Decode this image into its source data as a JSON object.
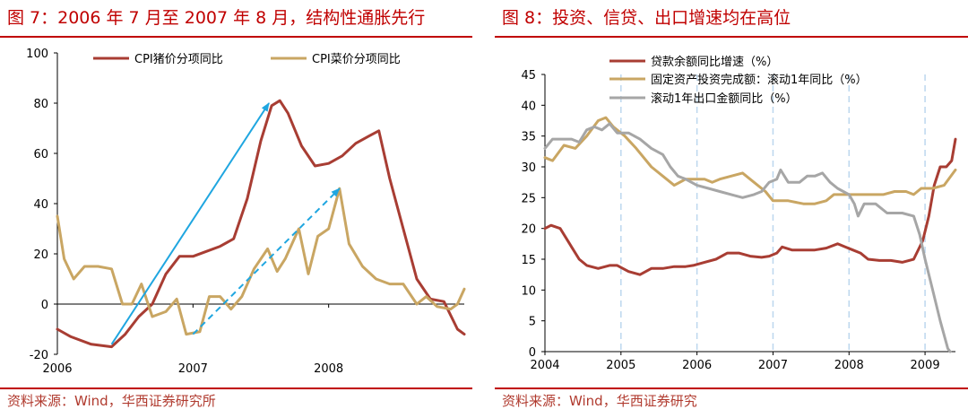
{
  "colors": {
    "title_red": "#c00000",
    "pork": "#a83d33",
    "veg": "#c9a663",
    "export": "#a6a6a6",
    "arrow": "#1fa6e0",
    "grid_blue": "#bcd7ee"
  },
  "left_panel": {
    "title": "图 7：2006 年 7 月至 2007 年 8 月，结构性通胀先行",
    "source": "资料来源：Wind，华西证券研究所"
  },
  "right_panel": {
    "title": "图 8：投资、信贷、出口增速均在高位",
    "source": "资料来源：Wind，华西证券研究"
  },
  "chart_data": [
    {
      "type": "line",
      "x_ticks": [
        "2006",
        "2007",
        "2008"
      ],
      "x_range": [
        2006.0,
        2009.0
      ],
      "ylim": [
        -20,
        100
      ],
      "y_ticks": [
        "-20",
        "0",
        "20",
        "40",
        "60",
        "80",
        "100"
      ],
      "legend_position": "top",
      "series": [
        {
          "name": "CPI猪价分项同比",
          "color": "#a83d33",
          "points": [
            [
              2006.0,
              -10
            ],
            [
              2006.1,
              -13
            ],
            [
              2006.25,
              -16
            ],
            [
              2006.4,
              -17
            ],
            [
              2006.5,
              -12
            ],
            [
              2006.6,
              -5
            ],
            [
              2006.7,
              0
            ],
            [
              2006.8,
              12
            ],
            [
              2006.9,
              19
            ],
            [
              2007.0,
              19
            ],
            [
              2007.1,
              21
            ],
            [
              2007.2,
              23
            ],
            [
              2007.3,
              26
            ],
            [
              2007.4,
              42
            ],
            [
              2007.5,
              65
            ],
            [
              2007.58,
              79
            ],
            [
              2007.64,
              81
            ],
            [
              2007.7,
              76
            ],
            [
              2007.8,
              63
            ],
            [
              2007.9,
              55
            ],
            [
              2008.0,
              56
            ],
            [
              2008.1,
              59
            ],
            [
              2008.2,
              64
            ],
            [
              2008.3,
              67
            ],
            [
              2008.37,
              69
            ],
            [
              2008.45,
              50
            ],
            [
              2008.55,
              30
            ],
            [
              2008.65,
              10
            ],
            [
              2008.75,
              2
            ],
            [
              2008.85,
              1
            ],
            [
              2008.95,
              -10
            ],
            [
              2009.0,
              -12
            ]
          ]
        },
        {
          "name": "CPI菜价分项同比",
          "color": "#c9a663",
          "points": [
            [
              2006.0,
              35
            ],
            [
              2006.05,
              18
            ],
            [
              2006.12,
              10
            ],
            [
              2006.2,
              15
            ],
            [
              2006.3,
              15
            ],
            [
              2006.4,
              14
            ],
            [
              2006.48,
              0
            ],
            [
              2006.55,
              0
            ],
            [
              2006.62,
              8
            ],
            [
              2006.7,
              -5
            ],
            [
              2006.8,
              -3
            ],
            [
              2006.88,
              2
            ],
            [
              2006.95,
              -12
            ],
            [
              2007.05,
              -11
            ],
            [
              2007.12,
              3
            ],
            [
              2007.2,
              3
            ],
            [
              2007.28,
              -2
            ],
            [
              2007.36,
              3
            ],
            [
              2007.45,
              14
            ],
            [
              2007.55,
              22
            ],
            [
              2007.62,
              13
            ],
            [
              2007.68,
              18
            ],
            [
              2007.78,
              30
            ],
            [
              2007.85,
              12
            ],
            [
              2007.92,
              27
            ],
            [
              2008.0,
              30
            ],
            [
              2008.08,
              46
            ],
            [
              2008.15,
              24
            ],
            [
              2008.25,
              15
            ],
            [
              2008.35,
              10
            ],
            [
              2008.45,
              8
            ],
            [
              2008.55,
              8
            ],
            [
              2008.65,
              0
            ],
            [
              2008.72,
              3
            ],
            [
              2008.8,
              -1
            ],
            [
              2008.9,
              -2
            ],
            [
              2008.95,
              0
            ],
            [
              2009.0,
              6
            ]
          ]
        }
      ],
      "annotations": [
        {
          "type": "arrow",
          "style": "solid",
          "from": [
            2006.4,
            -16
          ],
          "to": [
            2007.56,
            80
          ]
        },
        {
          "type": "arrow",
          "style": "dashed",
          "from": [
            2007.0,
            -12
          ],
          "to": [
            2008.08,
            46
          ]
        }
      ]
    },
    {
      "type": "line",
      "x_ticks": [
        "2004",
        "2005",
        "2006",
        "2007",
        "2008",
        "2009"
      ],
      "x_range": [
        2004.0,
        2009.4
      ],
      "ylim": [
        0,
        45
      ],
      "y_ticks": [
        "0",
        "5",
        "10",
        "15",
        "20",
        "25",
        "30",
        "35",
        "40",
        "45"
      ],
      "legend_position": "top",
      "vertical_dashed_grid_at": [
        2005,
        2006,
        2007,
        2008,
        2009
      ],
      "series": [
        {
          "name": "贷款余额同比增速（%）",
          "color": "#a83d33",
          "points": [
            [
              2004.0,
              20
            ],
            [
              2004.08,
              20.5
            ],
            [
              2004.2,
              20
            ],
            [
              2004.35,
              17
            ],
            [
              2004.45,
              15
            ],
            [
              2004.55,
              14
            ],
            [
              2004.7,
              13.5
            ],
            [
              2004.85,
              14
            ],
            [
              2004.95,
              14
            ],
            [
              2005.1,
              13
            ],
            [
              2005.25,
              12.5
            ],
            [
              2005.4,
              13.5
            ],
            [
              2005.55,
              13.5
            ],
            [
              2005.7,
              13.8
            ],
            [
              2005.85,
              13.8
            ],
            [
              2005.95,
              14
            ],
            [
              2006.1,
              14.5
            ],
            [
              2006.25,
              15
            ],
            [
              2006.4,
              16
            ],
            [
              2006.55,
              16
            ],
            [
              2006.7,
              15.5
            ],
            [
              2006.85,
              15.3
            ],
            [
              2006.95,
              15.5
            ],
            [
              2007.05,
              16
            ],
            [
              2007.12,
              17
            ],
            [
              2007.25,
              16.5
            ],
            [
              2007.4,
              16.5
            ],
            [
              2007.55,
              16.5
            ],
            [
              2007.7,
              16.8
            ],
            [
              2007.85,
              17.5
            ],
            [
              2007.95,
              17
            ],
            [
              2008.05,
              16.5
            ],
            [
              2008.15,
              16
            ],
            [
              2008.25,
              15
            ],
            [
              2008.4,
              14.8
            ],
            [
              2008.55,
              14.8
            ],
            [
              2008.7,
              14.5
            ],
            [
              2008.85,
              15
            ],
            [
              2008.97,
              18
            ],
            [
              2009.05,
              22
            ],
            [
              2009.12,
              27
            ],
            [
              2009.2,
              30
            ],
            [
              2009.28,
              30
            ],
            [
              2009.35,
              31
            ],
            [
              2009.4,
              34.5
            ]
          ]
        },
        {
          "name": "固定资产投资完成额：滚动1年同比（%）",
          "color": "#c9a663",
          "points": [
            [
              2004.0,
              31.5
            ],
            [
              2004.1,
              31
            ],
            [
              2004.25,
              33.5
            ],
            [
              2004.4,
              33
            ],
            [
              2004.55,
              35
            ],
            [
              2004.7,
              37.5
            ],
            [
              2004.8,
              38
            ],
            [
              2004.9,
              36.5
            ],
            [
              2005.05,
              35
            ],
            [
              2005.2,
              33
            ],
            [
              2005.4,
              30
            ],
            [
              2005.55,
              28.5
            ],
            [
              2005.7,
              27
            ],
            [
              2005.85,
              28
            ],
            [
              2006.0,
              28
            ],
            [
              2006.1,
              28
            ],
            [
              2006.2,
              27.5
            ],
            [
              2006.3,
              28
            ],
            [
              2006.45,
              28.5
            ],
            [
              2006.6,
              29
            ],
            [
              2006.75,
              27.5
            ],
            [
              2006.9,
              26
            ],
            [
              2007.0,
              24.5
            ],
            [
              2007.2,
              24.5
            ],
            [
              2007.4,
              24
            ],
            [
              2007.55,
              24
            ],
            [
              2007.7,
              24.5
            ],
            [
              2007.8,
              25.5
            ],
            [
              2007.95,
              25.5
            ],
            [
              2008.1,
              25.5
            ],
            [
              2008.3,
              25.5
            ],
            [
              2008.45,
              25.5
            ],
            [
              2008.6,
              26
            ],
            [
              2008.75,
              26
            ],
            [
              2008.85,
              25.5
            ],
            [
              2008.95,
              26.5
            ],
            [
              2009.1,
              26.5
            ],
            [
              2009.25,
              27
            ],
            [
              2009.4,
              29.5
            ]
          ]
        },
        {
          "name": "滚动1年出口金额同比（%）",
          "color": "#a6a6a6",
          "points": [
            [
              2004.0,
              33
            ],
            [
              2004.1,
              34.5
            ],
            [
              2004.2,
              34.5
            ],
            [
              2004.35,
              34.5
            ],
            [
              2004.45,
              34
            ],
            [
              2004.55,
              36
            ],
            [
              2004.65,
              36.5
            ],
            [
              2004.75,
              36
            ],
            [
              2004.85,
              37
            ],
            [
              2004.95,
              35.5
            ],
            [
              2005.1,
              35.5
            ],
            [
              2005.25,
              34.5
            ],
            [
              2005.4,
              33
            ],
            [
              2005.55,
              32
            ],
            [
              2005.65,
              30
            ],
            [
              2005.75,
              28.5
            ],
            [
              2005.85,
              28
            ],
            [
              2006.0,
              27
            ],
            [
              2006.15,
              26.5
            ],
            [
              2006.3,
              26
            ],
            [
              2006.45,
              25.5
            ],
            [
              2006.6,
              25
            ],
            [
              2006.75,
              25.5
            ],
            [
              2006.85,
              26
            ],
            [
              2006.95,
              27.5
            ],
            [
              2007.05,
              28
            ],
            [
              2007.1,
              29.5
            ],
            [
              2007.2,
              27.5
            ],
            [
              2007.35,
              27.5
            ],
            [
              2007.45,
              28.5
            ],
            [
              2007.55,
              28.5
            ],
            [
              2007.65,
              29
            ],
            [
              2007.75,
              27.5
            ],
            [
              2007.85,
              26.5
            ],
            [
              2008.0,
              25.5
            ],
            [
              2008.07,
              24
            ],
            [
              2008.12,
              22
            ],
            [
              2008.2,
              24
            ],
            [
              2008.35,
              24
            ],
            [
              2008.5,
              22.5
            ],
            [
              2008.7,
              22.5
            ],
            [
              2008.85,
              22
            ],
            [
              2008.93,
              19
            ],
            [
              2009.0,
              15
            ],
            [
              2009.1,
              10
            ],
            [
              2009.2,
              5
            ],
            [
              2009.3,
              0.5
            ],
            [
              2009.33,
              0
            ]
          ]
        }
      ]
    }
  ]
}
